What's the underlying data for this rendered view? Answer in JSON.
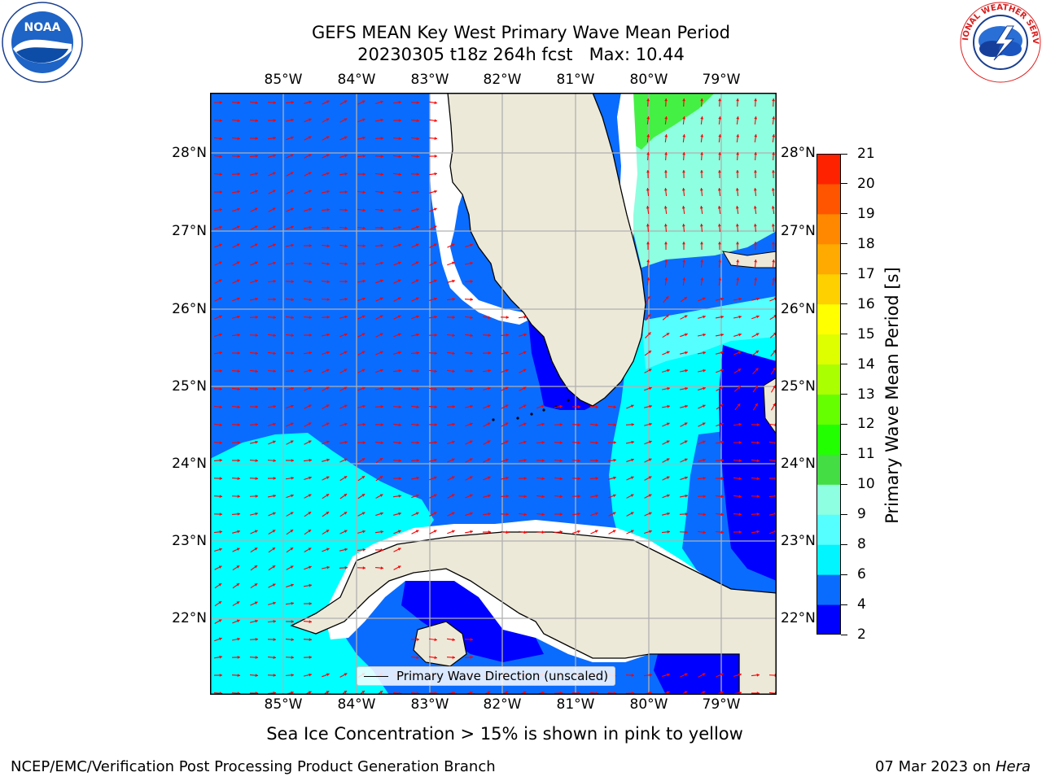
{
  "title": {
    "line1": "GEFS MEAN Key West Primary Wave Mean Period",
    "line2": "20230305 t18z 264h fcst   Max: 10.44"
  },
  "map": {
    "lon_labels": [
      "85°W",
      "84°W",
      "83°W",
      "82°W",
      "81°W",
      "80°W",
      "79°W"
    ],
    "lat_labels": [
      "28°N",
      "27°N",
      "26°N",
      "25°N",
      "24°N",
      "23°N",
      "22°N"
    ],
    "legend_text": "Primary Wave Direction (unscaled)",
    "colors": {
      "land": "#ede9d9",
      "band_2_4": "#0000ff",
      "band_4_6": "#0a6cff",
      "band_6_8": "#00ffff",
      "band_8_9": "#55ffff",
      "band_9_10": "#8effe0",
      "band_10_11": "#44f044",
      "arrow": "#ff0000",
      "grid": "#b0b0b0"
    }
  },
  "colorbar": {
    "label": "Primary Wave Mean Period [s]",
    "ticks": [
      "2",
      "4",
      "6",
      "8",
      "9",
      "10",
      "11",
      "12",
      "13",
      "14",
      "15",
      "16",
      "17",
      "18",
      "19",
      "20",
      "21"
    ],
    "colors": [
      "#0000ff",
      "#0a6cff",
      "#00f5ff",
      "#55ffff",
      "#8effe0",
      "#44dd44",
      "#22ff00",
      "#66ff00",
      "#aaff00",
      "#ddff00",
      "#ffff00",
      "#ffd000",
      "#ffaa00",
      "#ff8800",
      "#ff5500",
      "#ff2200",
      "#ff0000"
    ]
  },
  "subtitle": "Sea Ice Concentration > 15% is shown in pink to yellow",
  "footer": {
    "left": "NCEP/EMC/Verification Post Processing Product Generation Branch",
    "right_date": "07 Mar 2023 on ",
    "right_machine": "Hera"
  },
  "logos": {
    "left_text": "NOAA",
    "right_text": "NATIONAL WEATHER SERVICE"
  }
}
